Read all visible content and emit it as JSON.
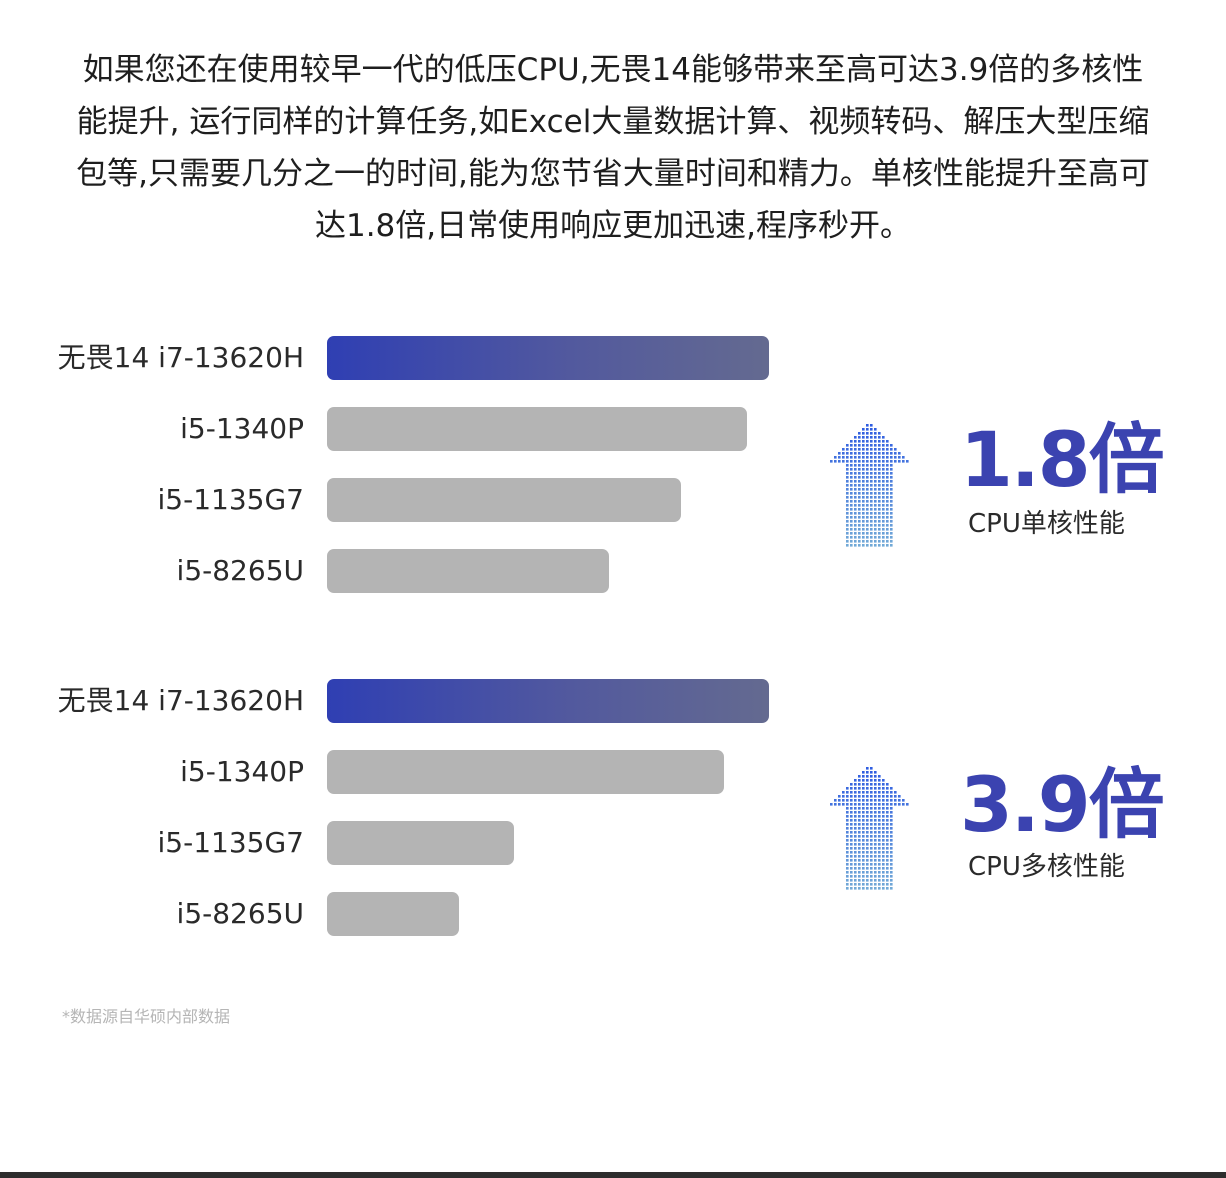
{
  "intro": {
    "lines": [
      "如果您还在使用较早一代的低压CPU,无畏14能够带来至高可达3.9倍的多核性",
      "能提升, 运行同样的计算任务,如Excel大量数据计算、视频转码、解压大型压缩",
      "包等,只需要几分之一的时间,能为您节省大量时间和精力。单核性能提升至高可",
      "达1.8倍,日常使用响应更加迅速,程序秒开。"
    ]
  },
  "colors": {
    "highlight": "#3b43b0",
    "bar_gray": "#b4b4b4",
    "arrow_blue": "#3f6fe0"
  },
  "icons": {
    "stat_arrow": "dotted-up-arrow-icon"
  },
  "chart_data": [
    {
      "type": "bar",
      "orientation": "horizontal",
      "categories": [
        "无畏14 i7-13620H",
        "i5-1340P",
        "i5-1135G7",
        "i5-8265U"
      ],
      "values": [
        1.8,
        1.71,
        1.44,
        1.15
      ],
      "xlim": [
        0,
        1.8
      ],
      "highlight_index": 0,
      "stat_value": "1.8倍",
      "stat_caption": "CPU单核性能"
    },
    {
      "type": "bar",
      "orientation": "horizontal",
      "categories": [
        "无畏14 i7-13620H",
        "i5-1340P",
        "i5-1135G7",
        "i5-8265U"
      ],
      "values": [
        3.9,
        3.5,
        1.65,
        1.16
      ],
      "xlim": [
        0,
        3.9
      ],
      "highlight_index": 0,
      "stat_value": "3.9倍",
      "stat_caption": "CPU多核性能"
    }
  ],
  "footnote": "*数据源自华硕内部数据"
}
